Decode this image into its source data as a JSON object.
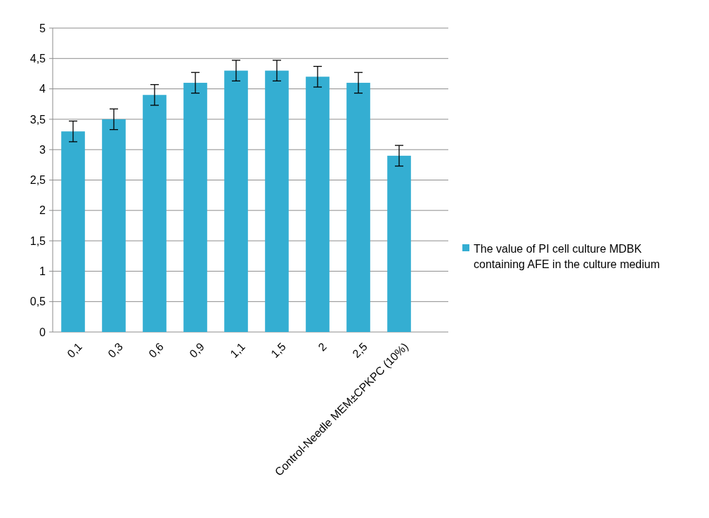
{
  "chart_data": {
    "type": "bar",
    "categories": [
      "0,1",
      "0,3",
      "0,6",
      "0,9",
      "1,1",
      "1,5",
      "2",
      "2,5",
      "Control-Needle MEM±CPKPC (10%)"
    ],
    "series": [
      {
        "name": "The value of PI cell culture MDBK containing AFE in the culture medium",
        "color": "#34aed2",
        "values": [
          3.3,
          3.5,
          3.9,
          4.1,
          4.3,
          4.3,
          4.2,
          4.1,
          2.9
        ],
        "errors": [
          0.17,
          0.17,
          0.17,
          0.17,
          0.17,
          0.17,
          0.17,
          0.17,
          0.17
        ]
      }
    ],
    "ylim": [
      0,
      5
    ],
    "yticks": [
      {
        "value": 0,
        "label": "0"
      },
      {
        "value": 0.5,
        "label": "0,5"
      },
      {
        "value": 1,
        "label": "1"
      },
      {
        "value": 1.5,
        "label": "1,5"
      },
      {
        "value": 2,
        "label": "2"
      },
      {
        "value": 2.5,
        "label": "2,5"
      },
      {
        "value": 3,
        "label": "3"
      },
      {
        "value": 3.5,
        "label": "3,5"
      },
      {
        "value": 4,
        "label": "4"
      },
      {
        "value": 4.5,
        "label": "4,5"
      },
      {
        "value": 5,
        "label": "5"
      }
    ],
    "grid": "y",
    "legend": "right"
  }
}
